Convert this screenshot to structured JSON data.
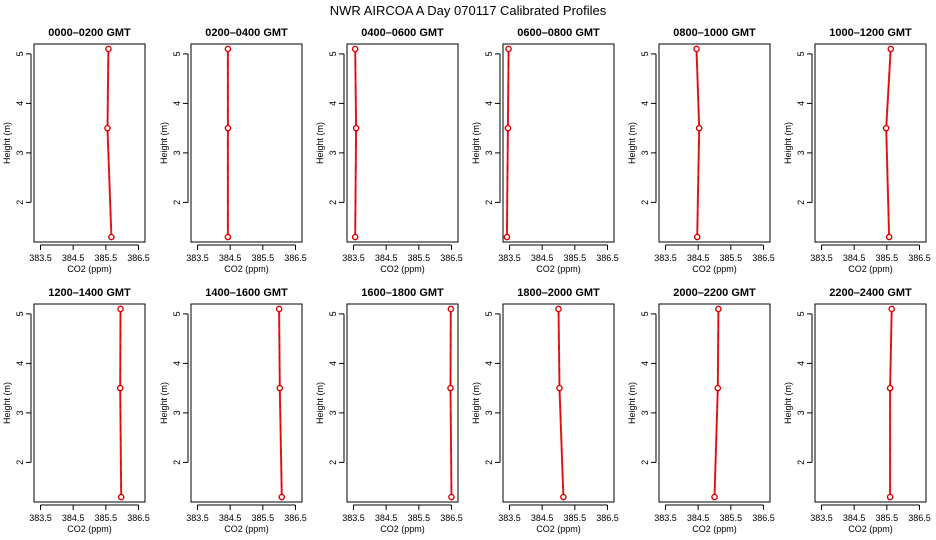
{
  "title": "NWR AIRCOA A  Day 070117  Calibrated Profiles",
  "colors": {
    "series": "#dd0000",
    "axis": "#000000",
    "background": "#ffffff"
  },
  "chart_data": [
    {
      "type": "line",
      "title": "0000–0200 GMT",
      "xlabel": "CO2 (ppm)",
      "ylabel": "Height (m)",
      "xlim": [
        383.3,
        386.7
      ],
      "ylim": [
        1.2,
        5.2
      ],
      "xticks": [
        "383.5",
        "384.5",
        "385.5",
        "386.5"
      ],
      "yticks": [
        "2",
        "3",
        "4",
        "5"
      ],
      "x": [
        385.58,
        385.55,
        385.67
      ],
      "y": [
        5.1,
        3.5,
        1.3
      ]
    },
    {
      "type": "line",
      "title": "0200–0400 GMT",
      "xlabel": "CO2 (ppm)",
      "ylabel": "Height (m)",
      "xlim": [
        383.3,
        386.7
      ],
      "ylim": [
        1.2,
        5.2
      ],
      "xticks": [
        "383.5",
        "384.5",
        "385.5",
        "386.5"
      ],
      "yticks": [
        "2",
        "3",
        "4",
        "5"
      ],
      "x": [
        384.43,
        384.43,
        384.43
      ],
      "y": [
        5.1,
        3.5,
        1.3
      ]
    },
    {
      "type": "line",
      "title": "0400–0600 GMT",
      "xlabel": "CO2 (ppm)",
      "ylabel": "Height (m)",
      "xlim": [
        383.3,
        386.7
      ],
      "ylim": [
        1.2,
        5.2
      ],
      "xticks": [
        "383.5",
        "384.5",
        "385.5",
        "386.5"
      ],
      "yticks": [
        "2",
        "3",
        "4",
        "5"
      ],
      "x": [
        383.55,
        383.58,
        383.55
      ],
      "y": [
        5.1,
        3.5,
        1.3
      ]
    },
    {
      "type": "line",
      "title": "0600–0800 GMT",
      "xlabel": "CO2 (ppm)",
      "ylabel": "Height (m)",
      "xlim": [
        383.3,
        386.7
      ],
      "ylim": [
        1.2,
        5.2
      ],
      "xticks": [
        "383.5",
        "384.5",
        "385.5",
        "386.5"
      ],
      "yticks": [
        "2",
        "3",
        "4",
        "5"
      ],
      "x": [
        383.47,
        383.45,
        383.42
      ],
      "y": [
        5.1,
        3.5,
        1.3
      ]
    },
    {
      "type": "line",
      "title": "0800–1000 GMT",
      "xlabel": "CO2 (ppm)",
      "ylabel": "Height (m)",
      "xlim": [
        383.3,
        386.7
      ],
      "ylim": [
        1.2,
        5.2
      ],
      "xticks": [
        "383.5",
        "384.5",
        "385.5",
        "386.5"
      ],
      "yticks": [
        "2",
        "3",
        "4",
        "5"
      ],
      "x": [
        384.45,
        384.53,
        384.47
      ],
      "y": [
        5.1,
        3.5,
        1.3
      ]
    },
    {
      "type": "line",
      "title": "1000–1200 GMT",
      "xlabel": "CO2 (ppm)",
      "ylabel": "Height (m)",
      "xlim": [
        383.3,
        386.7
      ],
      "ylim": [
        1.2,
        5.2
      ],
      "xticks": [
        "383.5",
        "384.5",
        "385.5",
        "386.5"
      ],
      "yticks": [
        "2",
        "3",
        "4",
        "5"
      ],
      "x": [
        385.62,
        385.48,
        385.57
      ],
      "y": [
        5.1,
        3.5,
        1.3
      ]
    },
    {
      "type": "line",
      "title": "1200–1400 GMT",
      "xlabel": "CO2 (ppm)",
      "ylabel": "Height (m)",
      "xlim": [
        383.3,
        386.7
      ],
      "ylim": [
        1.2,
        5.2
      ],
      "xticks": [
        "383.5",
        "384.5",
        "385.5",
        "386.5"
      ],
      "yticks": [
        "2",
        "3",
        "4",
        "5"
      ],
      "x": [
        385.95,
        385.94,
        385.97
      ],
      "y": [
        5.1,
        3.5,
        1.3
      ]
    },
    {
      "type": "line",
      "title": "1400–1600 GMT",
      "xlabel": "CO2 (ppm)",
      "ylabel": "Height (m)",
      "xlim": [
        383.3,
        386.7
      ],
      "ylim": [
        1.2,
        5.2
      ],
      "xticks": [
        "383.5",
        "384.5",
        "385.5",
        "386.5"
      ],
      "yticks": [
        "2",
        "3",
        "4",
        "5"
      ],
      "x": [
        386.0,
        386.02,
        386.08
      ],
      "y": [
        5.1,
        3.5,
        1.3
      ]
    },
    {
      "type": "line",
      "title": "1600–1800 GMT",
      "xlabel": "CO2 (ppm)",
      "ylabel": "Height (m)",
      "xlim": [
        383.3,
        386.7
      ],
      "ylim": [
        1.2,
        5.2
      ],
      "xticks": [
        "383.5",
        "384.5",
        "385.5",
        "386.5"
      ],
      "yticks": [
        "2",
        "3",
        "4",
        "5"
      ],
      "x": [
        386.48,
        386.47,
        386.5
      ],
      "y": [
        5.1,
        3.5,
        1.3
      ]
    },
    {
      "type": "line",
      "title": "1800–2000 GMT",
      "xlabel": "CO2 (ppm)",
      "ylabel": "Height (m)",
      "xlim": [
        383.3,
        386.7
      ],
      "ylim": [
        1.2,
        5.2
      ],
      "xticks": [
        "383.5",
        "384.5",
        "385.5",
        "386.5"
      ],
      "yticks": [
        "2",
        "3",
        "4",
        "5"
      ],
      "x": [
        385.0,
        385.03,
        385.15
      ],
      "y": [
        5.1,
        3.5,
        1.3
      ]
    },
    {
      "type": "line",
      "title": "2000–2200 GMT",
      "xlabel": "CO2 (ppm)",
      "ylabel": "Height (m)",
      "xlim": [
        383.3,
        386.7
      ],
      "ylim": [
        1.2,
        5.2
      ],
      "xticks": [
        "383.5",
        "384.5",
        "385.5",
        "386.5"
      ],
      "yticks": [
        "2",
        "3",
        "4",
        "5"
      ],
      "x": [
        385.12,
        385.1,
        385.0
      ],
      "y": [
        5.1,
        3.5,
        1.3
      ]
    },
    {
      "type": "line",
      "title": "2200–2400 GMT",
      "xlabel": "CO2 (ppm)",
      "ylabel": "Height (m)",
      "xlim": [
        383.3,
        386.7
      ],
      "ylim": [
        1.2,
        5.2
      ],
      "xticks": [
        "383.5",
        "384.5",
        "385.5",
        "386.5"
      ],
      "yticks": [
        "2",
        "3",
        "4",
        "5"
      ],
      "x": [
        385.65,
        385.6,
        385.6
      ],
      "y": [
        5.1,
        3.5,
        1.3
      ]
    }
  ]
}
